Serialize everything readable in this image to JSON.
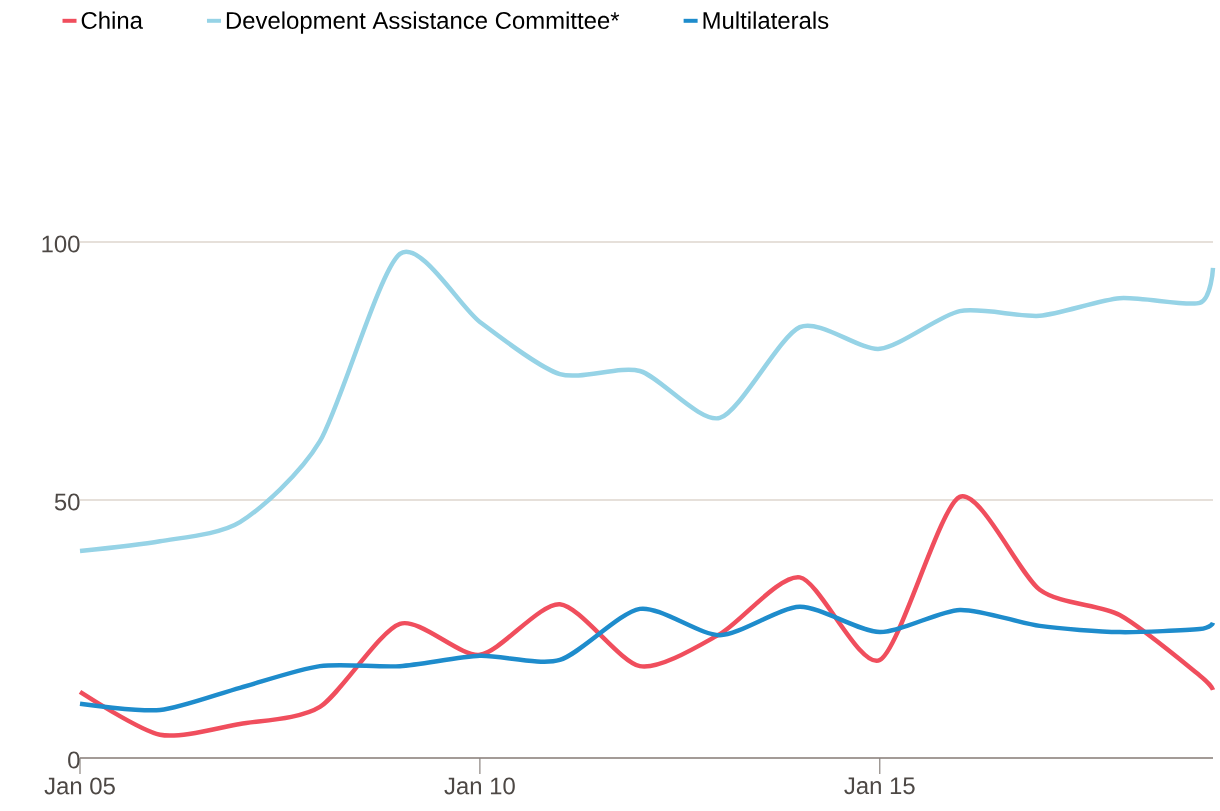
{
  "chart_data": {
    "type": "line",
    "x": [
      "2005-01",
      "2006-01",
      "2007-01",
      "2008-01",
      "2009-01",
      "2010-01",
      "2011-01",
      "2012-01",
      "2013-01",
      "2014-01",
      "2015-01",
      "2016-01",
      "2017-01",
      "2018-01",
      "2019-01",
      "2019-03"
    ],
    "series": [
      {
        "name": "China",
        "color": "#f04e5d",
        "values": [
          12.8,
          4.5,
          6.6,
          9.9,
          26,
          20,
          29.8,
          17.8,
          24,
          35,
          19,
          50.6,
          32.6,
          27.7,
          16,
          13.2
        ]
      },
      {
        "name": "Development Assistance Committee*",
        "color": "#96d3e6",
        "values": [
          40.1,
          42,
          45.7,
          61.4,
          97.7,
          84.5,
          74.4,
          75,
          65.9,
          83.5,
          79.3,
          86.6,
          85.7,
          89.1,
          88.2,
          95
        ]
      },
      {
        "name": "Multilaterals",
        "color": "#1e8ccc",
        "values": [
          10.5,
          9.3,
          13.6,
          17.8,
          17.8,
          19.8,
          19,
          28.9,
          23.8,
          29.3,
          24.4,
          28.7,
          25.6,
          24.4,
          25,
          26.2
        ]
      }
    ],
    "xlim": [
      "2005-01",
      "2019-03"
    ],
    "xticks": [
      {
        "value": "2005-01",
        "label": "Jan 05"
      },
      {
        "value": "2010-01",
        "label": "Jan 10"
      },
      {
        "value": "2015-01",
        "label": "Jan 15"
      }
    ],
    "ylim": [
      0,
      100
    ],
    "yticks": [
      0,
      50,
      100
    ],
    "grid": "y",
    "legend": "top left",
    "marker": "none",
    "line_style": "solid"
  }
}
